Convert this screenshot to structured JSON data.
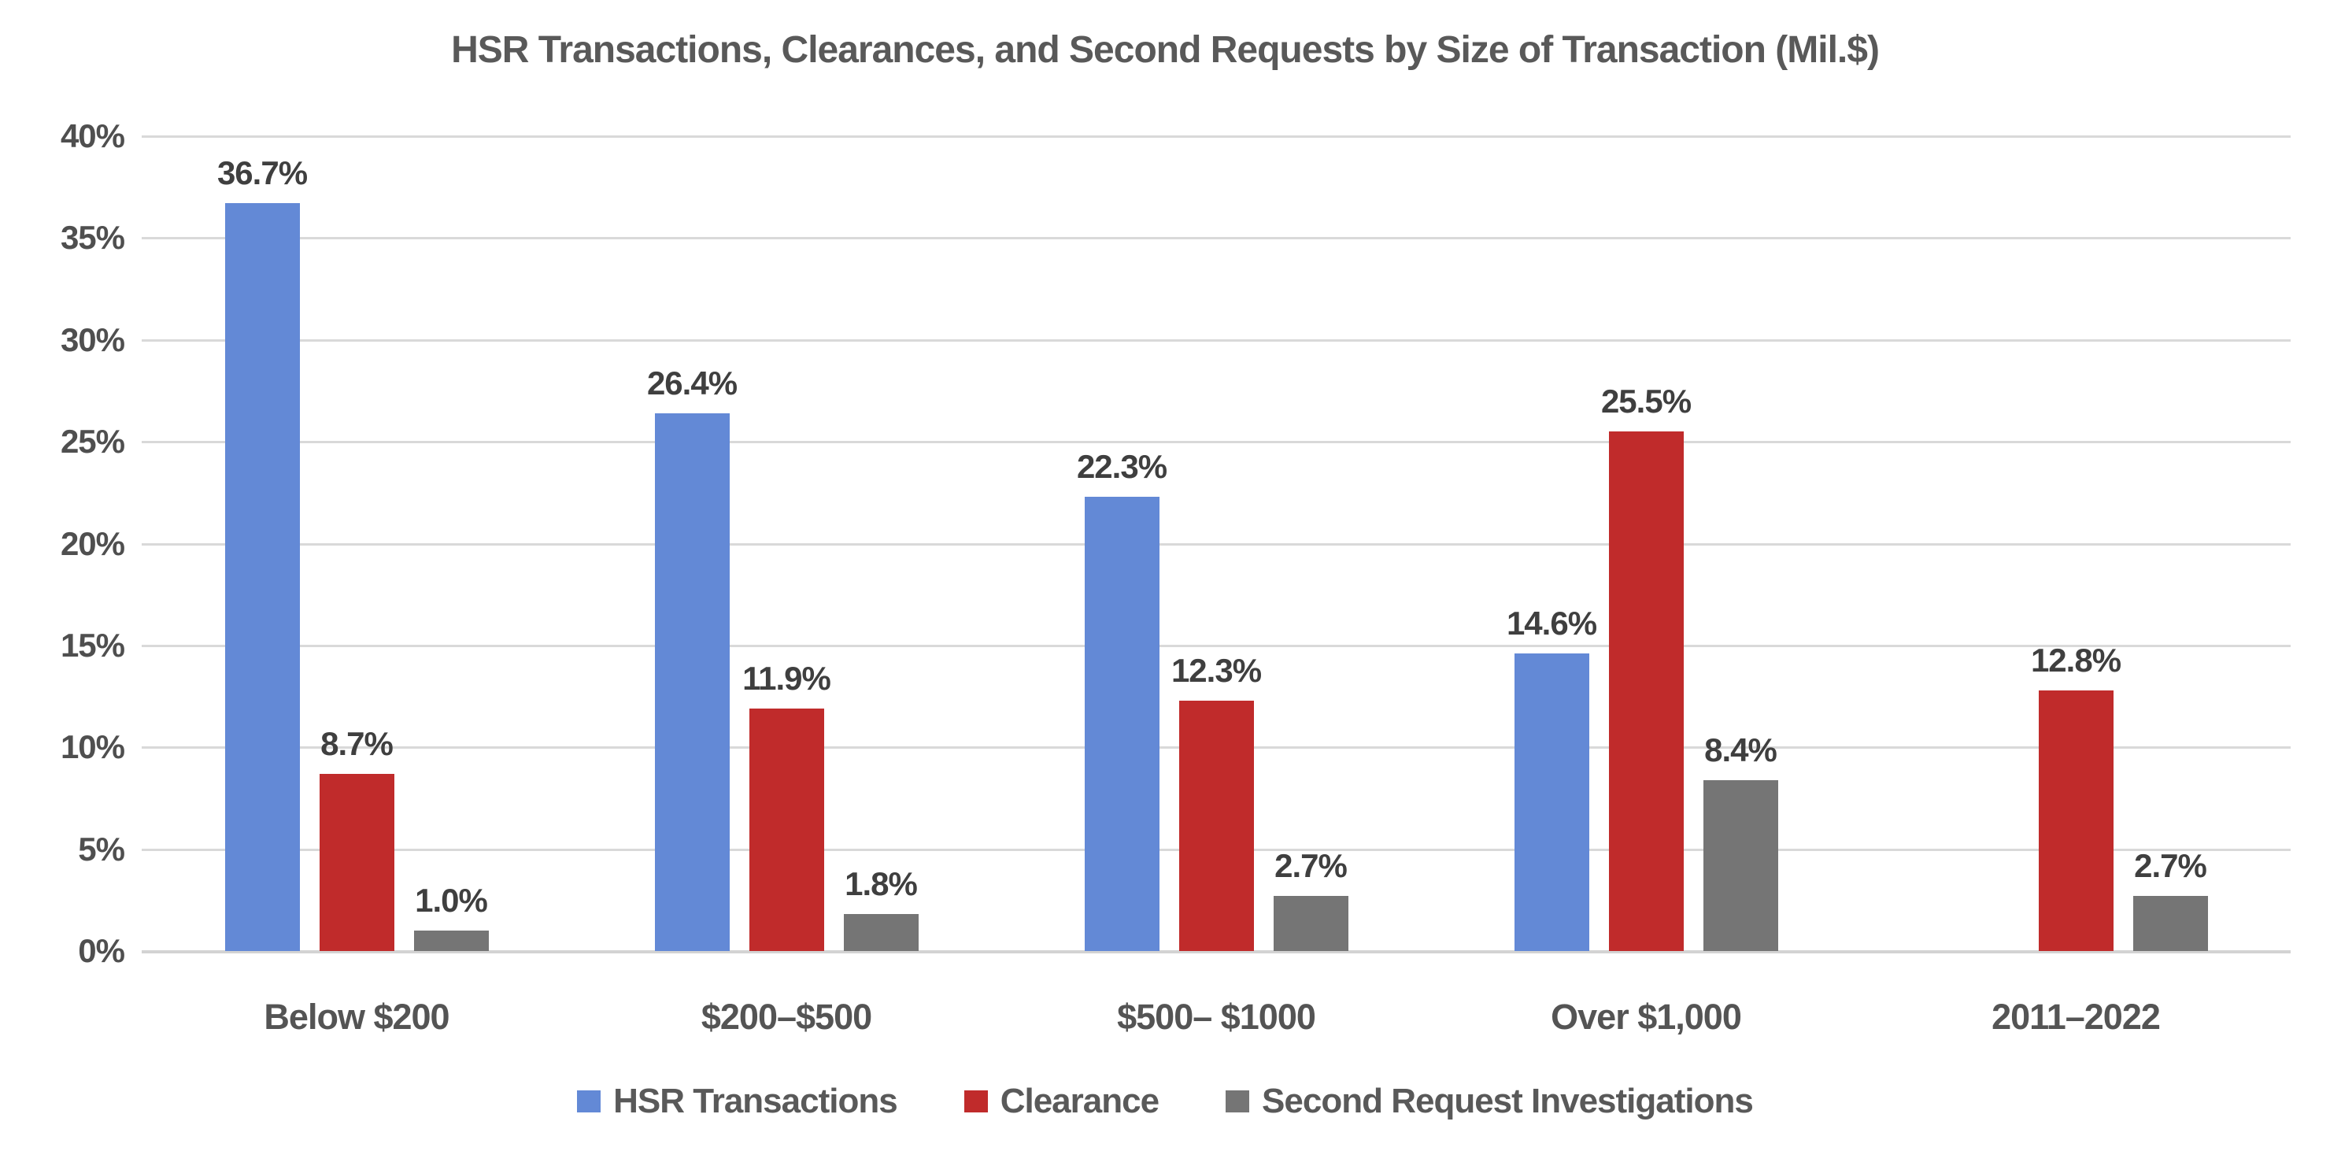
{
  "chart_data": {
    "type": "bar",
    "title": "HSR Transactions, Clearances, and Second Requests by Size of Transaction (Mil.$)",
    "categories": [
      "Below $200",
      "$200–$500",
      "$500– $1000",
      "Over $1,000",
      "2011–2022"
    ],
    "series": [
      {
        "name": "HSR Transactions",
        "color": "#6389D6",
        "values": [
          36.7,
          26.4,
          22.3,
          14.6,
          null
        ],
        "labels": [
          "36.7%",
          "26.4%",
          "22.3%",
          "14.6%",
          ""
        ]
      },
      {
        "name": "Clearance",
        "color": "#C02B2B",
        "values": [
          8.7,
          11.9,
          12.3,
          25.5,
          12.8
        ],
        "labels": [
          "8.7%",
          "11.9%",
          "12.3%",
          "25.5%",
          "12.8%"
        ]
      },
      {
        "name": "Second Request Investigations",
        "color": "#757575",
        "values": [
          1.0,
          1.8,
          2.7,
          8.4,
          2.7
        ],
        "labels": [
          "1.0%",
          "1.8%",
          "2.7%",
          "8.4%",
          "2.7%"
        ]
      }
    ],
    "xlabel": "",
    "ylabel": "",
    "ylim": [
      0,
      40
    ],
    "ytick_step": 5,
    "ytick_labels": [
      "0%",
      "5%",
      "10%",
      "15%",
      "20%",
      "25%",
      "30%",
      "35%",
      "40%"
    ],
    "grid": "horizontal",
    "legend_position": "bottom",
    "colors": {
      "gridline": "#D9D9D9",
      "axis_line": "#D3D3D3",
      "title_text": "#595959",
      "tick_text": "#4F4F4F",
      "data_label_text": "#3F3F3F",
      "category_text": "#545454",
      "legend_text": "#595959",
      "background": "#FFFFFF"
    }
  }
}
